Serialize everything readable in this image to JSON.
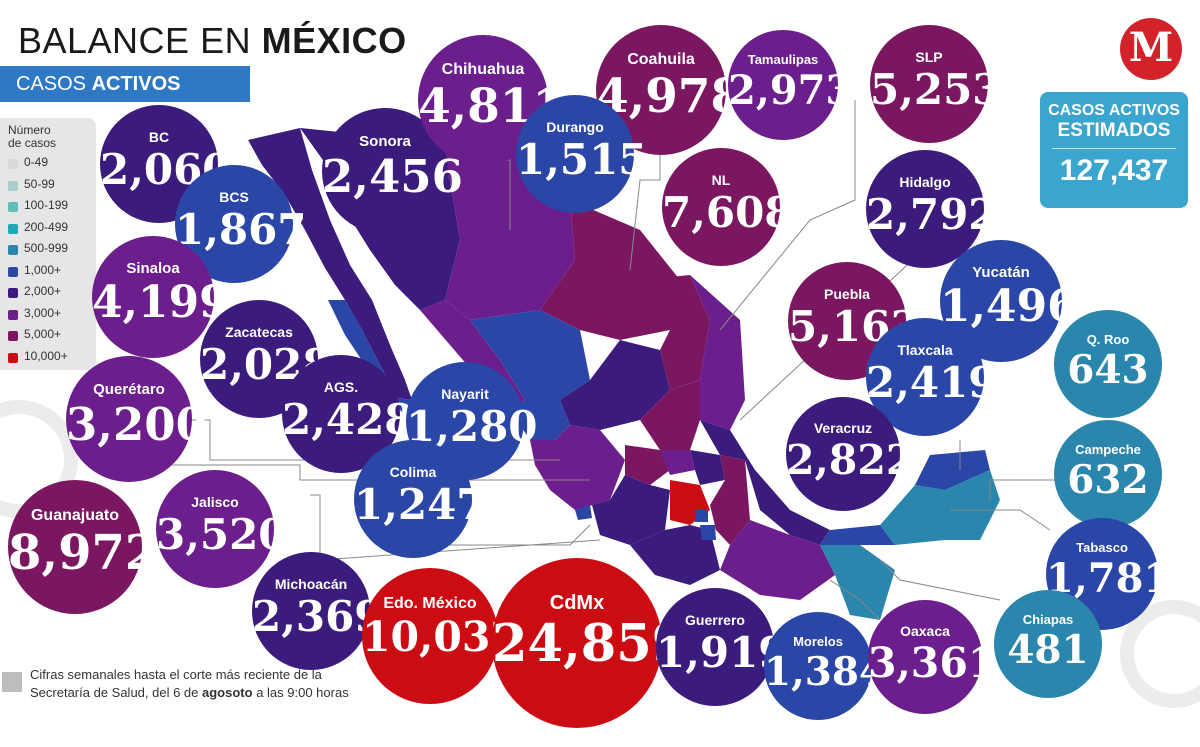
{
  "header": {
    "title_normal": "BALANCE EN ",
    "title_bold": "MÉXICO",
    "subtitle_normal": "CASOS ",
    "subtitle_bold": "ACTIVOS"
  },
  "legend": {
    "title_line1": "Número",
    "title_line2": "de",
    "title_line3": "casos",
    "items": [
      {
        "label": "0-49",
        "color": "#d9d9d9"
      },
      {
        "label": "50-99",
        "color": "#a8cfc9"
      },
      {
        "label": "100-199",
        "color": "#5fc0b5"
      },
      {
        "label": "200-499",
        "color": "#1fa8b3"
      },
      {
        "label": "500-999",
        "color": "#2a86ad"
      },
      {
        "label": "1,000+",
        "color": "#2a46a6"
      },
      {
        "label": "2,000+",
        "color": "#3b1c7c"
      },
      {
        "label": "3,000+",
        "color": "#6b1e8c"
      },
      {
        "label": "5,000+",
        "color": "#7a1760"
      },
      {
        "label": "10,000+",
        "color": "#cc0c13"
      }
    ]
  },
  "logo": {
    "letter": "M",
    "color": "#d2232a"
  },
  "estimated": {
    "line1": "CASOS ACTIVOS",
    "line2": "ESTIMADOS",
    "value": "127,437",
    "color": "#3aa6cf"
  },
  "footnote": {
    "text1": "Cifras semanales hasta el corte más reciente de la Secretaría de Salud, del 6 de ",
    "bold": "agosoto",
    "text2": " a las 9:00 horas"
  },
  "states": [
    {
      "id": "bc",
      "name": "BC",
      "value": "2,060"
    },
    {
      "id": "bcs",
      "name": "BCS",
      "value": "1,867"
    },
    {
      "id": "sonora",
      "name": "Sonora",
      "value": "2,456"
    },
    {
      "id": "chihuahua",
      "name": "Chihuahua",
      "value": "4,811"
    },
    {
      "id": "coahuila",
      "name": "Coahuila",
      "value": "4,978"
    },
    {
      "id": "tamaulipas",
      "name": "Tamaulipas",
      "value": "2,973"
    },
    {
      "id": "slp",
      "name": "SLP",
      "value": "5,253"
    },
    {
      "id": "durango",
      "name": "Durango",
      "value": "1,515"
    },
    {
      "id": "nl",
      "name": "NL",
      "value": "7,608"
    },
    {
      "id": "hidalgo",
      "name": "Hidalgo",
      "value": "2,792"
    },
    {
      "id": "sinaloa",
      "name": "Sinaloa",
      "value": "4,199"
    },
    {
      "id": "zacatecas",
      "name": "Zacatecas",
      "value": "2,028"
    },
    {
      "id": "puebla",
      "name": "Puebla",
      "value": "5,163"
    },
    {
      "id": "yucatan",
      "name": "Yucatán",
      "value": "1,496"
    },
    {
      "id": "ags",
      "name": "AGS.",
      "value": "2,428"
    },
    {
      "id": "queretaro",
      "name": "Querétaro",
      "value": "3,200"
    },
    {
      "id": "nayarit",
      "name": "Nayarit",
      "value": "1,280"
    },
    {
      "id": "tlaxcala",
      "name": "Tlaxcala",
      "value": "2,419"
    },
    {
      "id": "qroo",
      "name": "Q. Roo",
      "value": "643"
    },
    {
      "id": "veracruz",
      "name": "Veracruz",
      "value": "2,822"
    },
    {
      "id": "campeche",
      "name": "Campeche",
      "value": "632"
    },
    {
      "id": "colima",
      "name": "Colima",
      "value": "1,247"
    },
    {
      "id": "guanajuato",
      "name": "Guanajuato",
      "value": "8,972"
    },
    {
      "id": "jalisco",
      "name": "Jalisco",
      "value": "3,520"
    },
    {
      "id": "tabasco",
      "name": "Tabasco",
      "value": "1,781"
    },
    {
      "id": "michoacan",
      "name": "Michoacán",
      "value": "2,369"
    },
    {
      "id": "edomex",
      "name": "Edo. México",
      "value": "10,032"
    },
    {
      "id": "cdmx",
      "name": "CdMx",
      "value": "24,859"
    },
    {
      "id": "guerrero",
      "name": "Guerrero",
      "value": "1,919"
    },
    {
      "id": "morelos",
      "name": "Morelos",
      "value": "1,384"
    },
    {
      "id": "oaxaca",
      "name": "Oaxaca",
      "value": "3,361"
    },
    {
      "id": "chiapas",
      "name": "Chiapas",
      "value": "481"
    }
  ]
}
